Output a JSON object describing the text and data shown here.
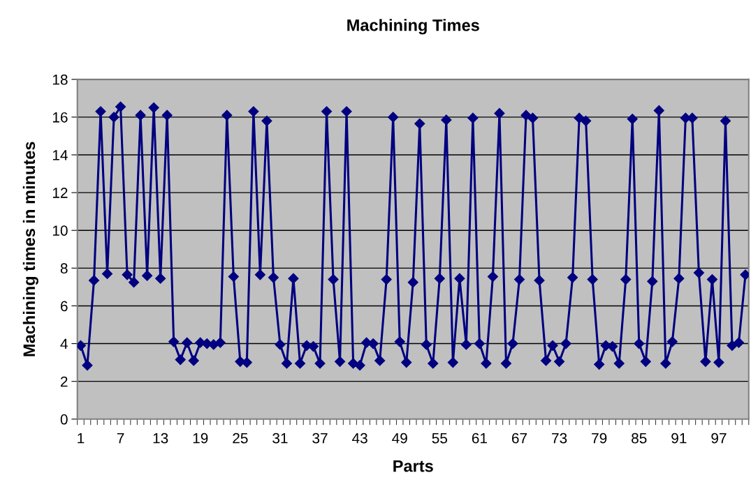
{
  "chart_data": {
    "type": "line",
    "title": "Machining Times",
    "xlabel": "Parts",
    "ylabel": "Machining times in minutes",
    "categories": [
      "1",
      null,
      null,
      null,
      null,
      null,
      "7",
      null,
      null,
      null,
      null,
      null,
      "13",
      null,
      null,
      null,
      null,
      null,
      "19",
      null,
      null,
      null,
      null,
      null,
      "25",
      null,
      null,
      null,
      null,
      null,
      "31",
      null,
      null,
      null,
      null,
      null,
      "37",
      null,
      null,
      null,
      null,
      null,
      "43",
      null,
      null,
      null,
      null,
      null,
      "49",
      null,
      null,
      null,
      null,
      null,
      "55",
      null,
      null,
      null,
      null,
      null,
      "61",
      null,
      null,
      null,
      null,
      null,
      "67",
      null,
      null,
      null,
      null,
      null,
      "73",
      null,
      null,
      null,
      null,
      null,
      "79",
      null,
      null,
      null,
      null,
      null,
      "85",
      null,
      null,
      null,
      null,
      null,
      "91",
      null,
      null,
      null,
      null,
      null,
      "97",
      null,
      null,
      null,
      null
    ],
    "series": [
      {
        "color": "#000080",
        "values": [
          3.9,
          2.85,
          7.35,
          16.3,
          7.7,
          16.0,
          16.55,
          7.65,
          7.25,
          16.1,
          7.6,
          16.5,
          7.45,
          16.1,
          4.1,
          3.15,
          4.05,
          3.1,
          4.05,
          4.0,
          3.95,
          4.05,
          16.1,
          7.55,
          3.05,
          3.0,
          16.3,
          7.65,
          15.8,
          7.5,
          3.95,
          2.95,
          7.45,
          2.95,
          3.9,
          3.85,
          2.95,
          16.3,
          7.4,
          3.05,
          16.3,
          2.95,
          2.85,
          4.05,
          4.0,
          3.1,
          7.4,
          16.0,
          4.1,
          3.0,
          7.25,
          15.65,
          3.95,
          2.95,
          7.45,
          15.85,
          3.0,
          7.45,
          3.95,
          15.95,
          4.0,
          2.95,
          7.55,
          16.2,
          2.95,
          4.0,
          7.4,
          16.1,
          15.95,
          7.35,
          3.1,
          3.9,
          3.05,
          4.0,
          7.5,
          15.95,
          15.8,
          7.4,
          2.9,
          3.9,
          3.85,
          2.95,
          7.4,
          15.9,
          4.0,
          3.05,
          7.3,
          16.35,
          2.95,
          4.1,
          7.45,
          15.95,
          15.95,
          7.75,
          3.05,
          7.4,
          3.0,
          15.8,
          3.9,
          4.05,
          7.65
        ]
      }
    ],
    "ylim": [
      0,
      18
    ],
    "yticks": [
      0,
      2,
      4,
      6,
      8,
      10,
      12,
      14,
      16,
      18
    ],
    "grid": "y",
    "marker": "diamond",
    "line_style": "solid"
  }
}
